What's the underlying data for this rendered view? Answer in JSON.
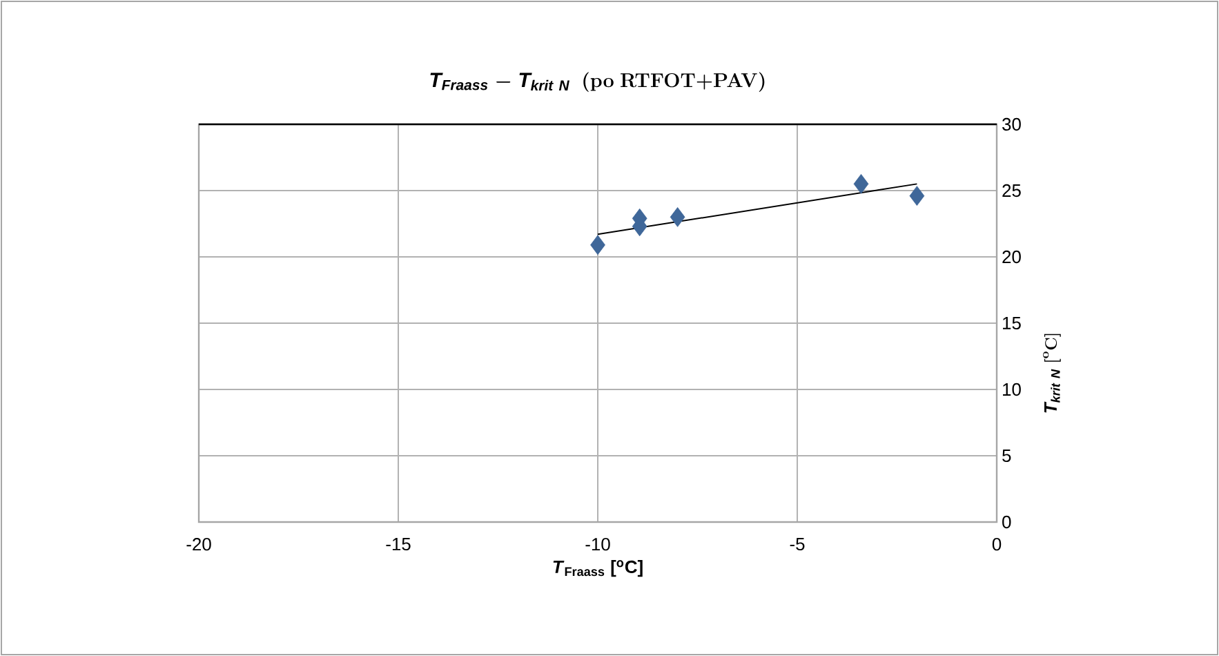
{
  "chart_data": {
    "type": "scatter",
    "title": "\\mathit{T}_{\\mathit{Fraass}}\\mathbf{\\ -\\ }\\mathit{T}_{\\mathit{krit\\ N}}\\ \\ \\mathbf{(po\\ RTFOT{+}PAV)}",
    "xlabel": "*T*$_{Fraass}$ [$^{o}$C]",
    "ylabel": "\\mathit{T}_{\\mathit{krit\\ N}}\\ \\mathbf{[}^{\\mathbf{o}}\\mathbf{C]}",
    "xlim": [
      -20,
      0
    ],
    "xticks": [
      -20,
      -15,
      -10,
      -5,
      0
    ],
    "ylim": [
      0,
      30
    ],
    "yticks": [
      0,
      5,
      10,
      15,
      20,
      25,
      30
    ],
    "grid": true,
    "marker": "diamond",
    "series": [
      {
        "color": "#3f6799",
        "x": [
          -10,
          -8.95,
          -8.95,
          -8.0,
          -3.4,
          -2.0
        ],
        "values": [
          20.9,
          22.9,
          22.3,
          23.0,
          25.5,
          24.6
        ]
      },
      {
        "type": "line",
        "color": "#000000",
        "marker": "none",
        "x": [
          -10,
          -2
        ],
        "values": [
          21.7,
          25.5
        ]
      }
    ]
  }
}
